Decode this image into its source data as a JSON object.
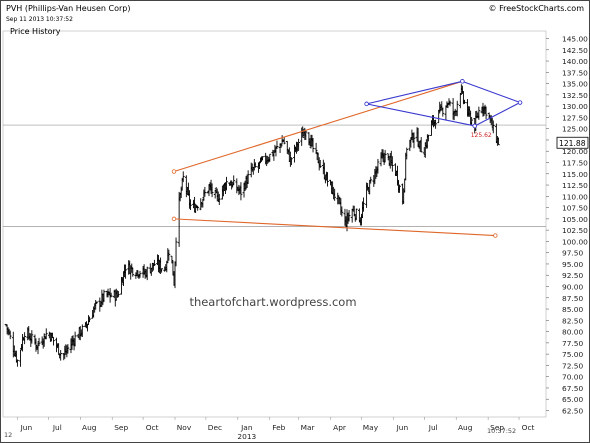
{
  "header": {
    "title": "PVH (Phillips-Van Heusen Corp)",
    "timestamp": "Sep 11 2013 10:37:52",
    "subtitle": "Price History",
    "copyright": "© FreeStockCharts.com"
  },
  "chart_data": {
    "type": "ohlc",
    "title": "PVH (Phillips-Van Heusen Corp)",
    "subtitle": "Price History",
    "watermark": "theartofchart.wordpress.com",
    "footer_left": "12",
    "footer_right": "10:37:52",
    "last_price": "121.88",
    "marker_label": "125.62",
    "y_axis": {
      "min": 62.5,
      "max": 145.0,
      "step": 2.5,
      "tick_labels": [
        "145.00",
        "142.50",
        "140.00",
        "137.50",
        "135.00",
        "132.50",
        "130.00",
        "127.50",
        "125.00",
        "122.50",
        "120.00",
        "117.50",
        "115.00",
        "112.50",
        "110.00",
        "107.50",
        "105.00",
        "102.50",
        "100.00",
        "97.50",
        "95.00",
        "92.50",
        "90.00",
        "87.50",
        "85.00",
        "82.50",
        "80.00",
        "77.50",
        "75.00",
        "72.50",
        "70.00",
        "67.50",
        "65.00",
        "62.50"
      ]
    },
    "x_axis": {
      "tick_labels": [
        "Jun",
        "Jul",
        "Aug",
        "Sep",
        "Oct",
        "Nov",
        "Dec",
        "Jan",
        "Feb",
        "Mar",
        "Apr",
        "May",
        "Jun",
        "Jul",
        "Aug",
        "Sep",
        "Oct"
      ],
      "year_label": "2013",
      "year_under": "Jan"
    },
    "horizontal_lines": [
      125.8,
      103.3
    ],
    "trendlines": [
      {
        "color": "#e0672a",
        "from": [
          "2012-10-31",
          115.5
        ],
        "to": [
          "2013-08-07",
          135.5
        ]
      },
      {
        "color": "#e0672a",
        "from": [
          "2012-10-31",
          105.0
        ],
        "to": [
          "2013-09-08",
          101.3
        ]
      },
      {
        "color": "#3a3ad0",
        "from": [
          "2013-05-06",
          130.5
        ],
        "to": [
          "2013-08-07",
          135.5
        ]
      },
      {
        "color": "#3a3ad0",
        "from": [
          "2013-08-07",
          135.5
        ],
        "to": [
          "2013-10-02",
          130.8
        ]
      },
      {
        "color": "#3a3ad0",
        "from": [
          "2013-10-02",
          130.8
        ],
        "to": [
          "2013-08-19",
          125.6
        ]
      },
      {
        "color": "#3a3ad0",
        "from": [
          "2013-08-19",
          125.6
        ],
        "to": [
          "2013-05-06",
          130.5
        ]
      }
    ],
    "price_anchors": [
      [
        "2012-05-21",
        81.5
      ],
      [
        "2012-06-01",
        73.5
      ],
      [
        "2012-06-08",
        80.0
      ],
      [
        "2012-06-20",
        77.0
      ],
      [
        "2012-07-01",
        80.0
      ],
      [
        "2012-07-15",
        74.5
      ],
      [
        "2012-07-28",
        79.0
      ],
      [
        "2012-08-06",
        81.0
      ],
      [
        "2012-08-14",
        85.0
      ],
      [
        "2012-08-25",
        88.0
      ],
      [
        "2012-09-06",
        88.0
      ],
      [
        "2012-09-14",
        94.5
      ],
      [
        "2012-09-24",
        93.5
      ],
      [
        "2012-10-03",
        93.0
      ],
      [
        "2012-10-12",
        95.0
      ],
      [
        "2012-10-22",
        94.0
      ],
      [
        "2012-10-27",
        99.0
      ],
      [
        "2012-10-31",
        91.0
      ],
      [
        "2012-11-03",
        106.0
      ],
      [
        "2012-11-09",
        114.0
      ],
      [
        "2012-11-17",
        107.0
      ],
      [
        "2012-11-26",
        109.0
      ],
      [
        "2012-12-04",
        112.0
      ],
      [
        "2012-12-12",
        109.5
      ],
      [
        "2012-12-22",
        113.5
      ],
      [
        "2013-01-04",
        111.0
      ],
      [
        "2013-01-14",
        115.5
      ],
      [
        "2013-01-24",
        117.5
      ],
      [
        "2013-02-06",
        120.0
      ],
      [
        "2013-02-14",
        122.5
      ],
      [
        "2013-02-21",
        118.0
      ],
      [
        "2013-03-01",
        122.0
      ],
      [
        "2013-03-08",
        125.0
      ],
      [
        "2013-03-15",
        120.5
      ],
      [
        "2013-03-22",
        117.0
      ],
      [
        "2013-03-30",
        113.0
      ],
      [
        "2013-04-08",
        109.0
      ],
      [
        "2013-04-15",
        104.0
      ],
      [
        "2013-04-22",
        107.0
      ],
      [
        "2013-04-30",
        105.0
      ],
      [
        "2013-05-06",
        111.0
      ],
      [
        "2013-05-14",
        115.0
      ],
      [
        "2013-05-22",
        119.0
      ],
      [
        "2013-05-28",
        118.0
      ],
      [
        "2013-06-04",
        115.0
      ],
      [
        "2013-06-10",
        109.0
      ],
      [
        "2013-06-14",
        121.0
      ],
      [
        "2013-06-22",
        124.0
      ],
      [
        "2013-06-30",
        119.5
      ],
      [
        "2013-07-08",
        126.0
      ],
      [
        "2013-07-16",
        128.5
      ],
      [
        "2013-07-24",
        131.0
      ],
      [
        "2013-07-30",
        128.0
      ],
      [
        "2013-08-05",
        133.5
      ],
      [
        "2013-08-12",
        128.5
      ],
      [
        "2013-08-19",
        125.6
      ],
      [
        "2013-08-25",
        130.5
      ],
      [
        "2013-09-01",
        128.5
      ],
      [
        "2013-09-06",
        124.5
      ],
      [
        "2013-09-11",
        121.9
      ]
    ],
    "colors": {
      "bars": "#000000",
      "orange_trend": "#e0672a",
      "blue_trend": "#3a3ad0",
      "label_red": "#cc2222",
      "hline": "#999999"
    }
  }
}
